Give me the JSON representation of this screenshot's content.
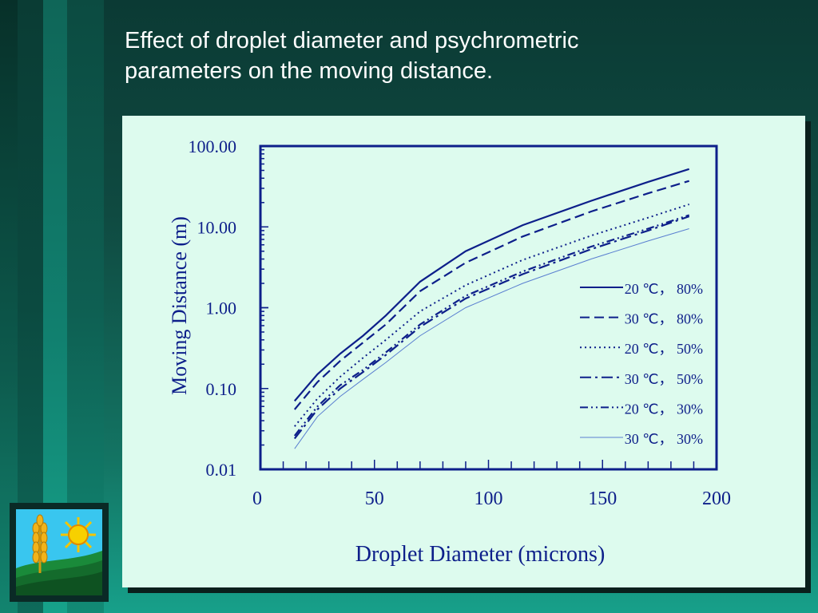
{
  "slide": {
    "title": "Effect of droplet diameter and psychrometric parameters on the moving distance."
  },
  "colors": {
    "line": "#0d1f8a",
    "thin_line": "#5a7fd0",
    "panel": "#ddfbee",
    "title_text": "#ffffff"
  },
  "logo": {
    "icons": [
      "sun-icon",
      "wheat-icon",
      "field-icon"
    ]
  },
  "chart_data": {
    "type": "line",
    "xlabel": "Droplet Diameter (microns)",
    "ylabel": "Moving Distance (m)",
    "xlim": [
      0,
      200
    ],
    "ylim": [
      0.01,
      100
    ],
    "yscale": "log",
    "x_ticks": [
      "0",
      "50",
      "100",
      "150",
      "200"
    ],
    "y_ticks": [
      "0.01",
      "0.10",
      "1.00",
      "10.00",
      "100.00"
    ],
    "grid": false,
    "legend_position": "right",
    "series": [
      {
        "name": "20 ℃， 80%",
        "style": "solid",
        "x": [
          15,
          25,
          35,
          45,
          55,
          70,
          90,
          115,
          145,
          170,
          188
        ],
        "y": [
          0.07,
          0.15,
          0.27,
          0.45,
          0.8,
          2.1,
          5,
          10.5,
          21,
          36,
          52
        ]
      },
      {
        "name": "30 ℃， 80%",
        "style": "dashed",
        "x": [
          15,
          25,
          35,
          45,
          55,
          70,
          90,
          115,
          145,
          170,
          188
        ],
        "y": [
          0.055,
          0.12,
          0.22,
          0.37,
          0.62,
          1.6,
          3.6,
          7.6,
          15.5,
          26,
          37
        ]
      },
      {
        "name": "20 ℃， 50%",
        "style": "dotted",
        "x": [
          15,
          25,
          35,
          45,
          55,
          70,
          90,
          115,
          145,
          170,
          188
        ],
        "y": [
          0.034,
          0.075,
          0.14,
          0.24,
          0.4,
          0.9,
          1.9,
          3.9,
          7.8,
          13,
          19
        ]
      },
      {
        "name": "30 ℃， 50%",
        "style": "dashdot",
        "x": [
          15,
          25,
          35,
          45,
          55,
          70,
          90,
          115,
          145,
          170,
          188
        ],
        "y": [
          0.024,
          0.055,
          0.1,
          0.16,
          0.26,
          0.58,
          1.3,
          2.6,
          5.3,
          9,
          13.5
        ]
      },
      {
        "name": "20 ℃， 30%",
        "style": "dashdotdot",
        "x": [
          15,
          25,
          35,
          45,
          55,
          70,
          90,
          115,
          145,
          170,
          188
        ],
        "y": [
          0.026,
          0.06,
          0.11,
          0.17,
          0.28,
          0.62,
          1.4,
          2.8,
          5.7,
          9.5,
          14
        ]
      },
      {
        "name": "30 ℃， 30%",
        "style": "thin",
        "x": [
          15,
          25,
          35,
          45,
          55,
          70,
          90,
          115,
          145,
          170,
          188
        ],
        "y": [
          0.018,
          0.045,
          0.08,
          0.13,
          0.21,
          0.45,
          1.0,
          2.0,
          4.0,
          6.7,
          9.5
        ]
      }
    ]
  }
}
